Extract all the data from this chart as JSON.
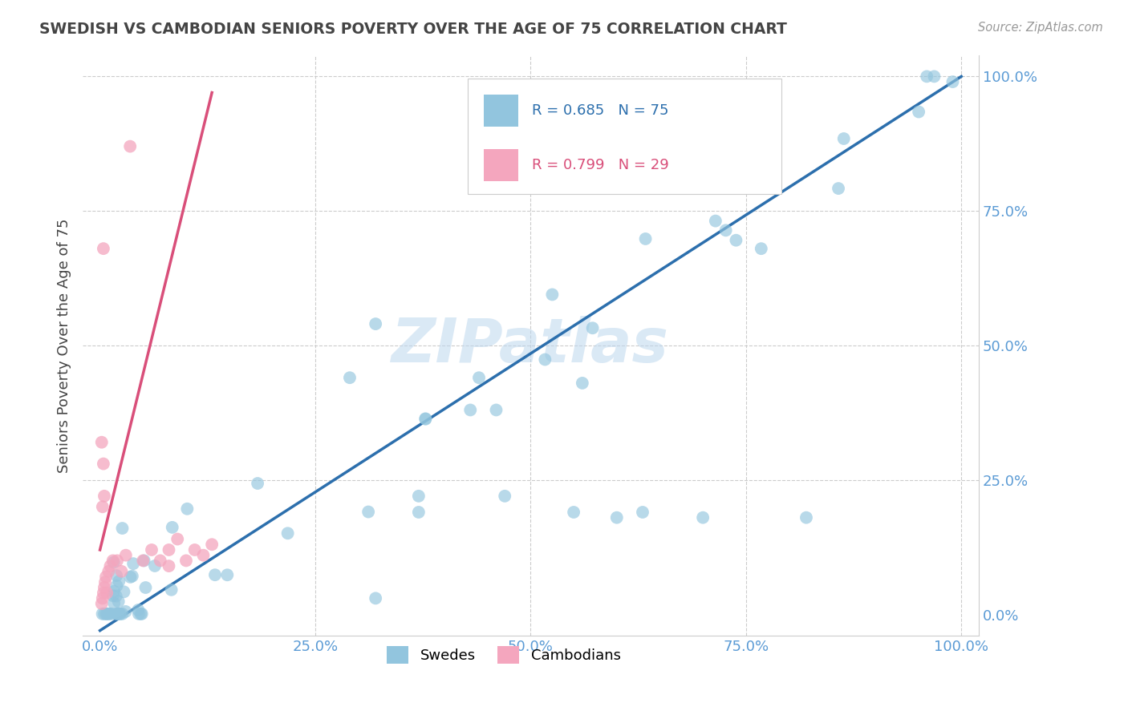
{
  "title": "SWEDISH VS CAMBODIAN SENIORS POVERTY OVER THE AGE OF 75 CORRELATION CHART",
  "source": "Source: ZipAtlas.com",
  "ylabel_label": "Seniors Poverty Over the Age of 75",
  "swedish_R": "R = 0.685",
  "swedish_N": "N = 75",
  "cambodian_R": "R = 0.799",
  "cambodian_N": "N = 29",
  "blue_color": "#92c5de",
  "pink_color": "#f4a6be",
  "blue_line_color": "#2c6fad",
  "pink_line_color": "#d94f7a",
  "legend_label_swedish": "Swedes",
  "legend_label_cambodian": "Cambodians",
  "xlim": [
    -0.02,
    1.02
  ],
  "ylim": [
    -0.04,
    1.04
  ],
  "xticks": [
    0.0,
    0.25,
    0.5,
    0.75,
    1.0
  ],
  "yticks": [
    0.0,
    0.25,
    0.5,
    0.75,
    1.0
  ],
  "xtick_labels": [
    "0.0%",
    "25.0%",
    "50.0%",
    "75.0%",
    "100.0%"
  ],
  "ytick_labels": [
    "0.0%",
    "25.0%",
    "50.0%",
    "75.0%",
    "100.0%"
  ],
  "watermark": "ZIPatlas",
  "background_color": "#ffffff",
  "grid_color": "#cccccc",
  "title_color": "#444444",
  "axis_label_color": "#444444",
  "tick_label_color": "#5b9bd5",
  "blue_trend_x0": 0.0,
  "blue_trend_y0": -0.03,
  "blue_trend_x1": 1.0,
  "blue_trend_y1": 1.0,
  "pink_trend_x0": 0.0,
  "pink_trend_y0": 0.12,
  "pink_trend_x1": 0.13,
  "pink_trend_y1": 0.97
}
